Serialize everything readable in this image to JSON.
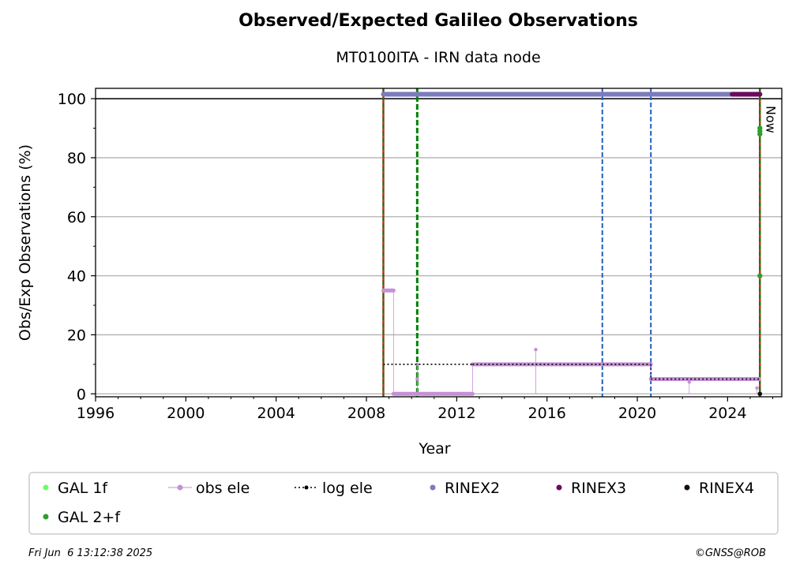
{
  "title": "Observed/Expected Galileo Observations",
  "subtitle": "MT0100ITA - IRN data node",
  "footer": {
    "timestamp": "Fri Jun  6 13:12:38 2025",
    "copyright": "©GNSS@ROB"
  },
  "chart_data": {
    "type": "scatter",
    "xlabel": "Year",
    "ylabel": "Obs/Exp Observations (%)",
    "xlim": [
      1996,
      2026.4
    ],
    "ylim": [
      -1,
      103.5
    ],
    "xticks": [
      1996,
      2000,
      2004,
      2008,
      2012,
      2016,
      2020,
      2024
    ],
    "yticks": [
      0,
      20,
      40,
      60,
      80,
      100
    ],
    "grid": "horizontal",
    "now_label": "Now",
    "legend_position": "below",
    "legend": [
      {
        "name": "GAL 1f",
        "marker": "dot",
        "color": "#66ff66"
      },
      {
        "name": "obs ele",
        "marker": "dot-line",
        "color": "#c690d6"
      },
      {
        "name": "log ele",
        "marker": "dot-dotted",
        "color": "#000000"
      },
      {
        "name": "RINEX2",
        "marker": "dot",
        "color": "#7b7bbd"
      },
      {
        "name": "RINEX3",
        "marker": "dot",
        "color": "#6b0a5e"
      },
      {
        "name": "RINEX4",
        "marker": "dot",
        "color": "#1a0a14"
      },
      {
        "name": "GAL 2+f",
        "marker": "dot",
        "color": "#2ca02c"
      }
    ],
    "vertical_lines": [
      {
        "x": 2008.75,
        "color": "#d62728",
        "style": "solid"
      },
      {
        "x": 2008.75,
        "color": "#008000",
        "style": "dashed"
      },
      {
        "x": 2010.25,
        "color": "#008000",
        "style": "dashed-thick"
      },
      {
        "x": 2018.45,
        "color": "#1f5fbf",
        "style": "dashed"
      },
      {
        "x": 2020.6,
        "color": "#1f5fbf",
        "style": "dashed"
      },
      {
        "x": 2025.43,
        "color": "#d62728",
        "style": "solid"
      },
      {
        "x": 2025.43,
        "color": "#008000",
        "style": "dashed"
      }
    ],
    "log_ele": [
      {
        "x": [
          2008.75,
          2012.7
        ],
        "y": 10
      },
      {
        "x": [
          2012.7,
          2020.6
        ],
        "y": 10
      },
      {
        "x": [
          2020.6,
          2025.43
        ],
        "y": 5
      }
    ],
    "obs_ele": [
      {
        "x": [
          2008.75,
          2009.2
        ],
        "y": 35
      },
      {
        "x": [
          2009.2,
          2012.7
        ],
        "y": 0
      },
      {
        "x": [
          2012.7,
          2020.6
        ],
        "y": 10
      },
      {
        "x": [
          2020.6,
          2025.4
        ],
        "y": 5
      }
    ],
    "obs_ele_points": [
      {
        "x": 2010.25,
        "y": 10
      },
      {
        "x": 2010.25,
        "y": 5
      },
      {
        "x": 2015.5,
        "y": 15
      },
      {
        "x": 2022.3,
        "y": 4
      },
      {
        "x": 2025.3,
        "y": 2
      }
    ],
    "rinex2": {
      "x": [
        2008.75,
        2025.43
      ],
      "y": 101.5
    },
    "rinex3": {
      "x": [
        2024.2,
        2025.43
      ],
      "y": 101.5
    },
    "gal_2f": [
      {
        "x": 2025.43,
        "y": 90
      },
      {
        "x": 2025.43,
        "y": 89
      },
      {
        "x": 2025.43,
        "y": 88
      },
      {
        "x": 2025.43,
        "y": 40
      }
    ],
    "rinex4": [
      {
        "x": 2025.43,
        "y": 0
      }
    ]
  }
}
